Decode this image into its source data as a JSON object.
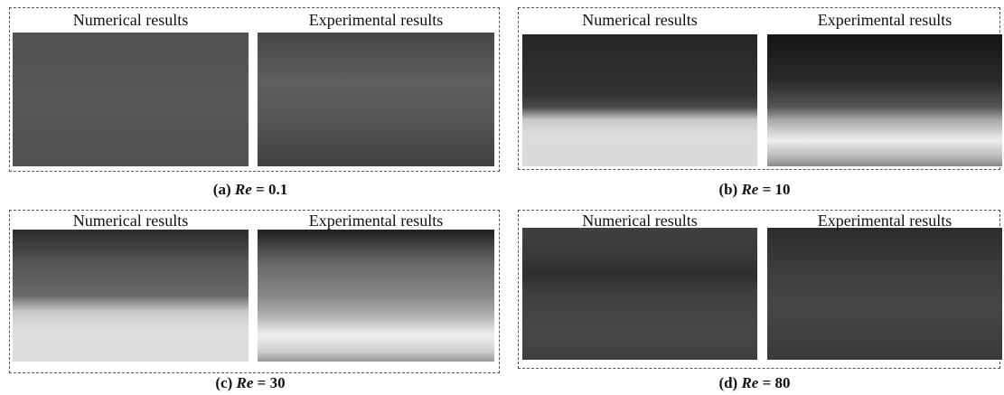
{
  "panels": [
    {
      "numerical": "Numerical results",
      "experimental": "Experimental results",
      "caption": {
        "label": "(a)",
        "symbol": "Re",
        "value": "= 0.1"
      }
    },
    {
      "numerical": "Numerical results",
      "experimental": "Experimental results",
      "caption": {
        "label": "(b)",
        "symbol": "Re",
        "value": "= 10"
      }
    },
    {
      "numerical": "Numerical results",
      "experimental": "Experimental results",
      "caption": {
        "label": "(c)",
        "symbol": "Re",
        "value": "= 30"
      }
    },
    {
      "numerical": "Numerical results",
      "experimental": "Experimental results",
      "caption": {
        "label": "(d)",
        "symbol": "Re",
        "value": "= 80"
      }
    }
  ]
}
